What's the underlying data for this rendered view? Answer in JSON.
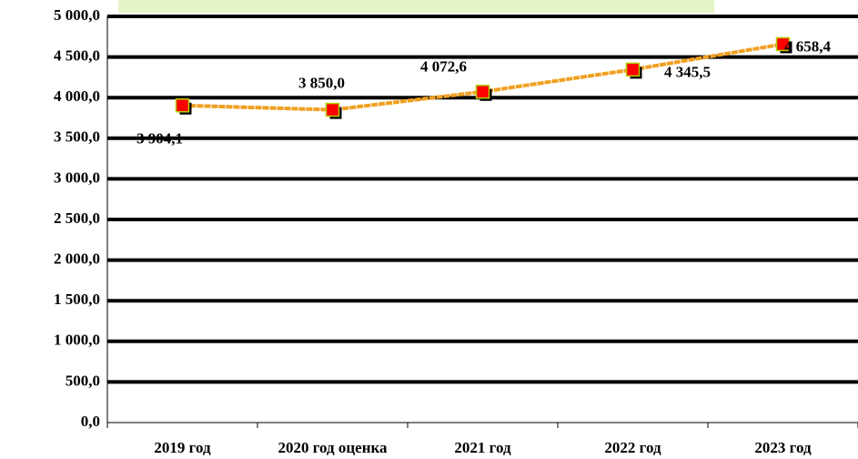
{
  "chart_data": {
    "type": "line",
    "categories": [
      "2019 год",
      "2020 год оценка",
      "2021 год",
      "2022 год",
      "2023 год"
    ],
    "series": [
      {
        "color": "#f0a020",
        "marker_color": "#ff0000",
        "values": [
          3904.1,
          3850.0,
          4072.6,
          4345.5,
          4658.4
        ],
        "value_labels": [
          "3 904,1",
          "3 850,0",
          "4 072,6",
          "4 345,5",
          "4 658,4"
        ]
      }
    ],
    "ylim": [
      0,
      5000
    ],
    "yticks": [
      {
        "value": 0,
        "label": "0,0"
      },
      {
        "value": 500,
        "label": "500,0"
      },
      {
        "value": 1000,
        "label": "1 000,0"
      },
      {
        "value": 1500,
        "label": "1 500,0"
      },
      {
        "value": 2000,
        "label": "2 000,0"
      },
      {
        "value": 2500,
        "label": "2 500,0"
      },
      {
        "value": 3000,
        "label": "3 000,0"
      },
      {
        "value": 3500,
        "label": "3 500,0"
      },
      {
        "value": 4000,
        "label": "4 000,0"
      },
      {
        "value": 4500,
        "label": "4 500,0"
      },
      {
        "value": 5000,
        "label": "5 000,0"
      }
    ],
    "grid": true
  }
}
